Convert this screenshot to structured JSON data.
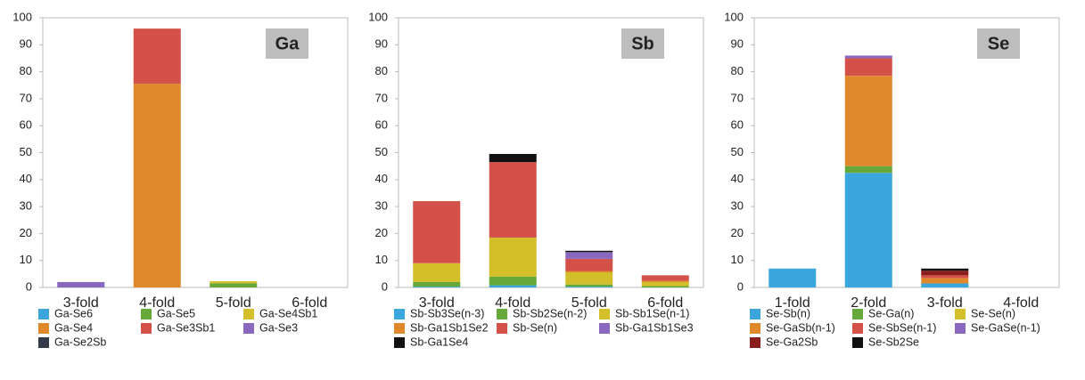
{
  "chart_data": [
    {
      "type": "bar",
      "stacked": true,
      "label": "Ga",
      "categories": [
        "3-fold",
        "4-fold",
        "5-fold",
        "6-fold"
      ],
      "ylim": [
        0,
        100
      ],
      "yticks": [
        0,
        10,
        20,
        30,
        40,
        50,
        60,
        70,
        80,
        90,
        100
      ],
      "grid": false,
      "series": [
        {
          "name": "Ga-Se6",
          "color": "#3aa6dc",
          "values": [
            0,
            0,
            0,
            0
          ]
        },
        {
          "name": "Ga-Se5",
          "color": "#66a83a",
          "values": [
            0,
            0,
            1.5,
            0
          ]
        },
        {
          "name": "Ga-Se4Sb1",
          "color": "#d2bf2a",
          "values": [
            0,
            0,
            0.8,
            0
          ]
        },
        {
          "name": "Ga-Se4",
          "color": "#e0882c",
          "values": [
            0,
            75.5,
            0,
            0
          ]
        },
        {
          "name": "Ga-Se3Sb1",
          "color": "#d4514a",
          "values": [
            0,
            20.5,
            0,
            0
          ]
        },
        {
          "name": "Ga-Se3",
          "color": "#8a68c0",
          "values": [
            2,
            0,
            0,
            0
          ]
        },
        {
          "name": "Ga-Se2Sb",
          "color": "#333a48",
          "values": [
            0,
            0,
            0,
            0
          ]
        }
      ]
    },
    {
      "type": "bar",
      "stacked": true,
      "label": "Sb",
      "categories": [
        "3-fold",
        "4-fold",
        "5-fold",
        "6-fold"
      ],
      "ylim": [
        0,
        100
      ],
      "yticks": [
        0,
        10,
        20,
        30,
        40,
        50,
        60,
        70,
        80,
        90,
        100
      ],
      "grid": false,
      "series": [
        {
          "name": "Sb-Sb3Se(n-3)",
          "color": "#3aa6dc",
          "values": [
            0.3,
            0.8,
            0.3,
            0
          ]
        },
        {
          "name": "Sb-Sb2Se(n-2)",
          "color": "#66a83a",
          "values": [
            1.7,
            3.2,
            0.8,
            0.5
          ]
        },
        {
          "name": "Sb-Sb1Se(n-1)",
          "color": "#d2bf2a",
          "values": [
            7,
            14.5,
            4.5,
            1.5
          ]
        },
        {
          "name": "Sb-Ga1Sb1Se2",
          "color": "#e0882c",
          "values": [
            0,
            0,
            0.5,
            0.5
          ]
        },
        {
          "name": "Sb-Se(n)",
          "color": "#d4514a",
          "values": [
            23,
            28,
            4.5,
            2
          ]
        },
        {
          "name": "Sb-Ga1Sb1Se3",
          "color": "#8a68c0",
          "values": [
            0,
            0,
            2.5,
            0
          ]
        },
        {
          "name": "Sb-Ga1Se4",
          "color": "#111111",
          "values": [
            0,
            3,
            0.5,
            0
          ]
        }
      ]
    },
    {
      "type": "bar",
      "stacked": true,
      "label": "Se",
      "categories": [
        "1-fold",
        "2-fold",
        "3-fold",
        "4-fold"
      ],
      "ylim": [
        0,
        100
      ],
      "yticks": [
        0,
        10,
        20,
        30,
        40,
        50,
        60,
        70,
        80,
        90,
        100
      ],
      "grid": false,
      "series": [
        {
          "name": "Se-Sb(n)",
          "color": "#3aa6dc",
          "values": [
            7,
            42.5,
            1.5,
            0
          ]
        },
        {
          "name": "Se-Ga(n)",
          "color": "#66a83a",
          "values": [
            0,
            2.5,
            0,
            0
          ]
        },
        {
          "name": "Se-Se(n)",
          "color": "#d2bf2a",
          "values": [
            0,
            0,
            0,
            0
          ]
        },
        {
          "name": "Se-GaSb(n-1)",
          "color": "#e0882c",
          "values": [
            0,
            33.5,
            2,
            0
          ]
        },
        {
          "name": "Se-SbSe(n-1)",
          "color": "#d4514a",
          "values": [
            0,
            6.5,
            1,
            0
          ]
        },
        {
          "name": "Se-GaSe(n-1)",
          "color": "#8a68c0",
          "values": [
            0,
            1,
            0,
            0
          ]
        },
        {
          "name": "Se-Ga2Sb",
          "color": "#8b1c1c",
          "values": [
            0,
            0,
            1.7,
            0
          ]
        },
        {
          "name": "Se-Sb2Se",
          "color": "#111111",
          "values": [
            0,
            0,
            0.8,
            0
          ]
        }
      ]
    }
  ]
}
